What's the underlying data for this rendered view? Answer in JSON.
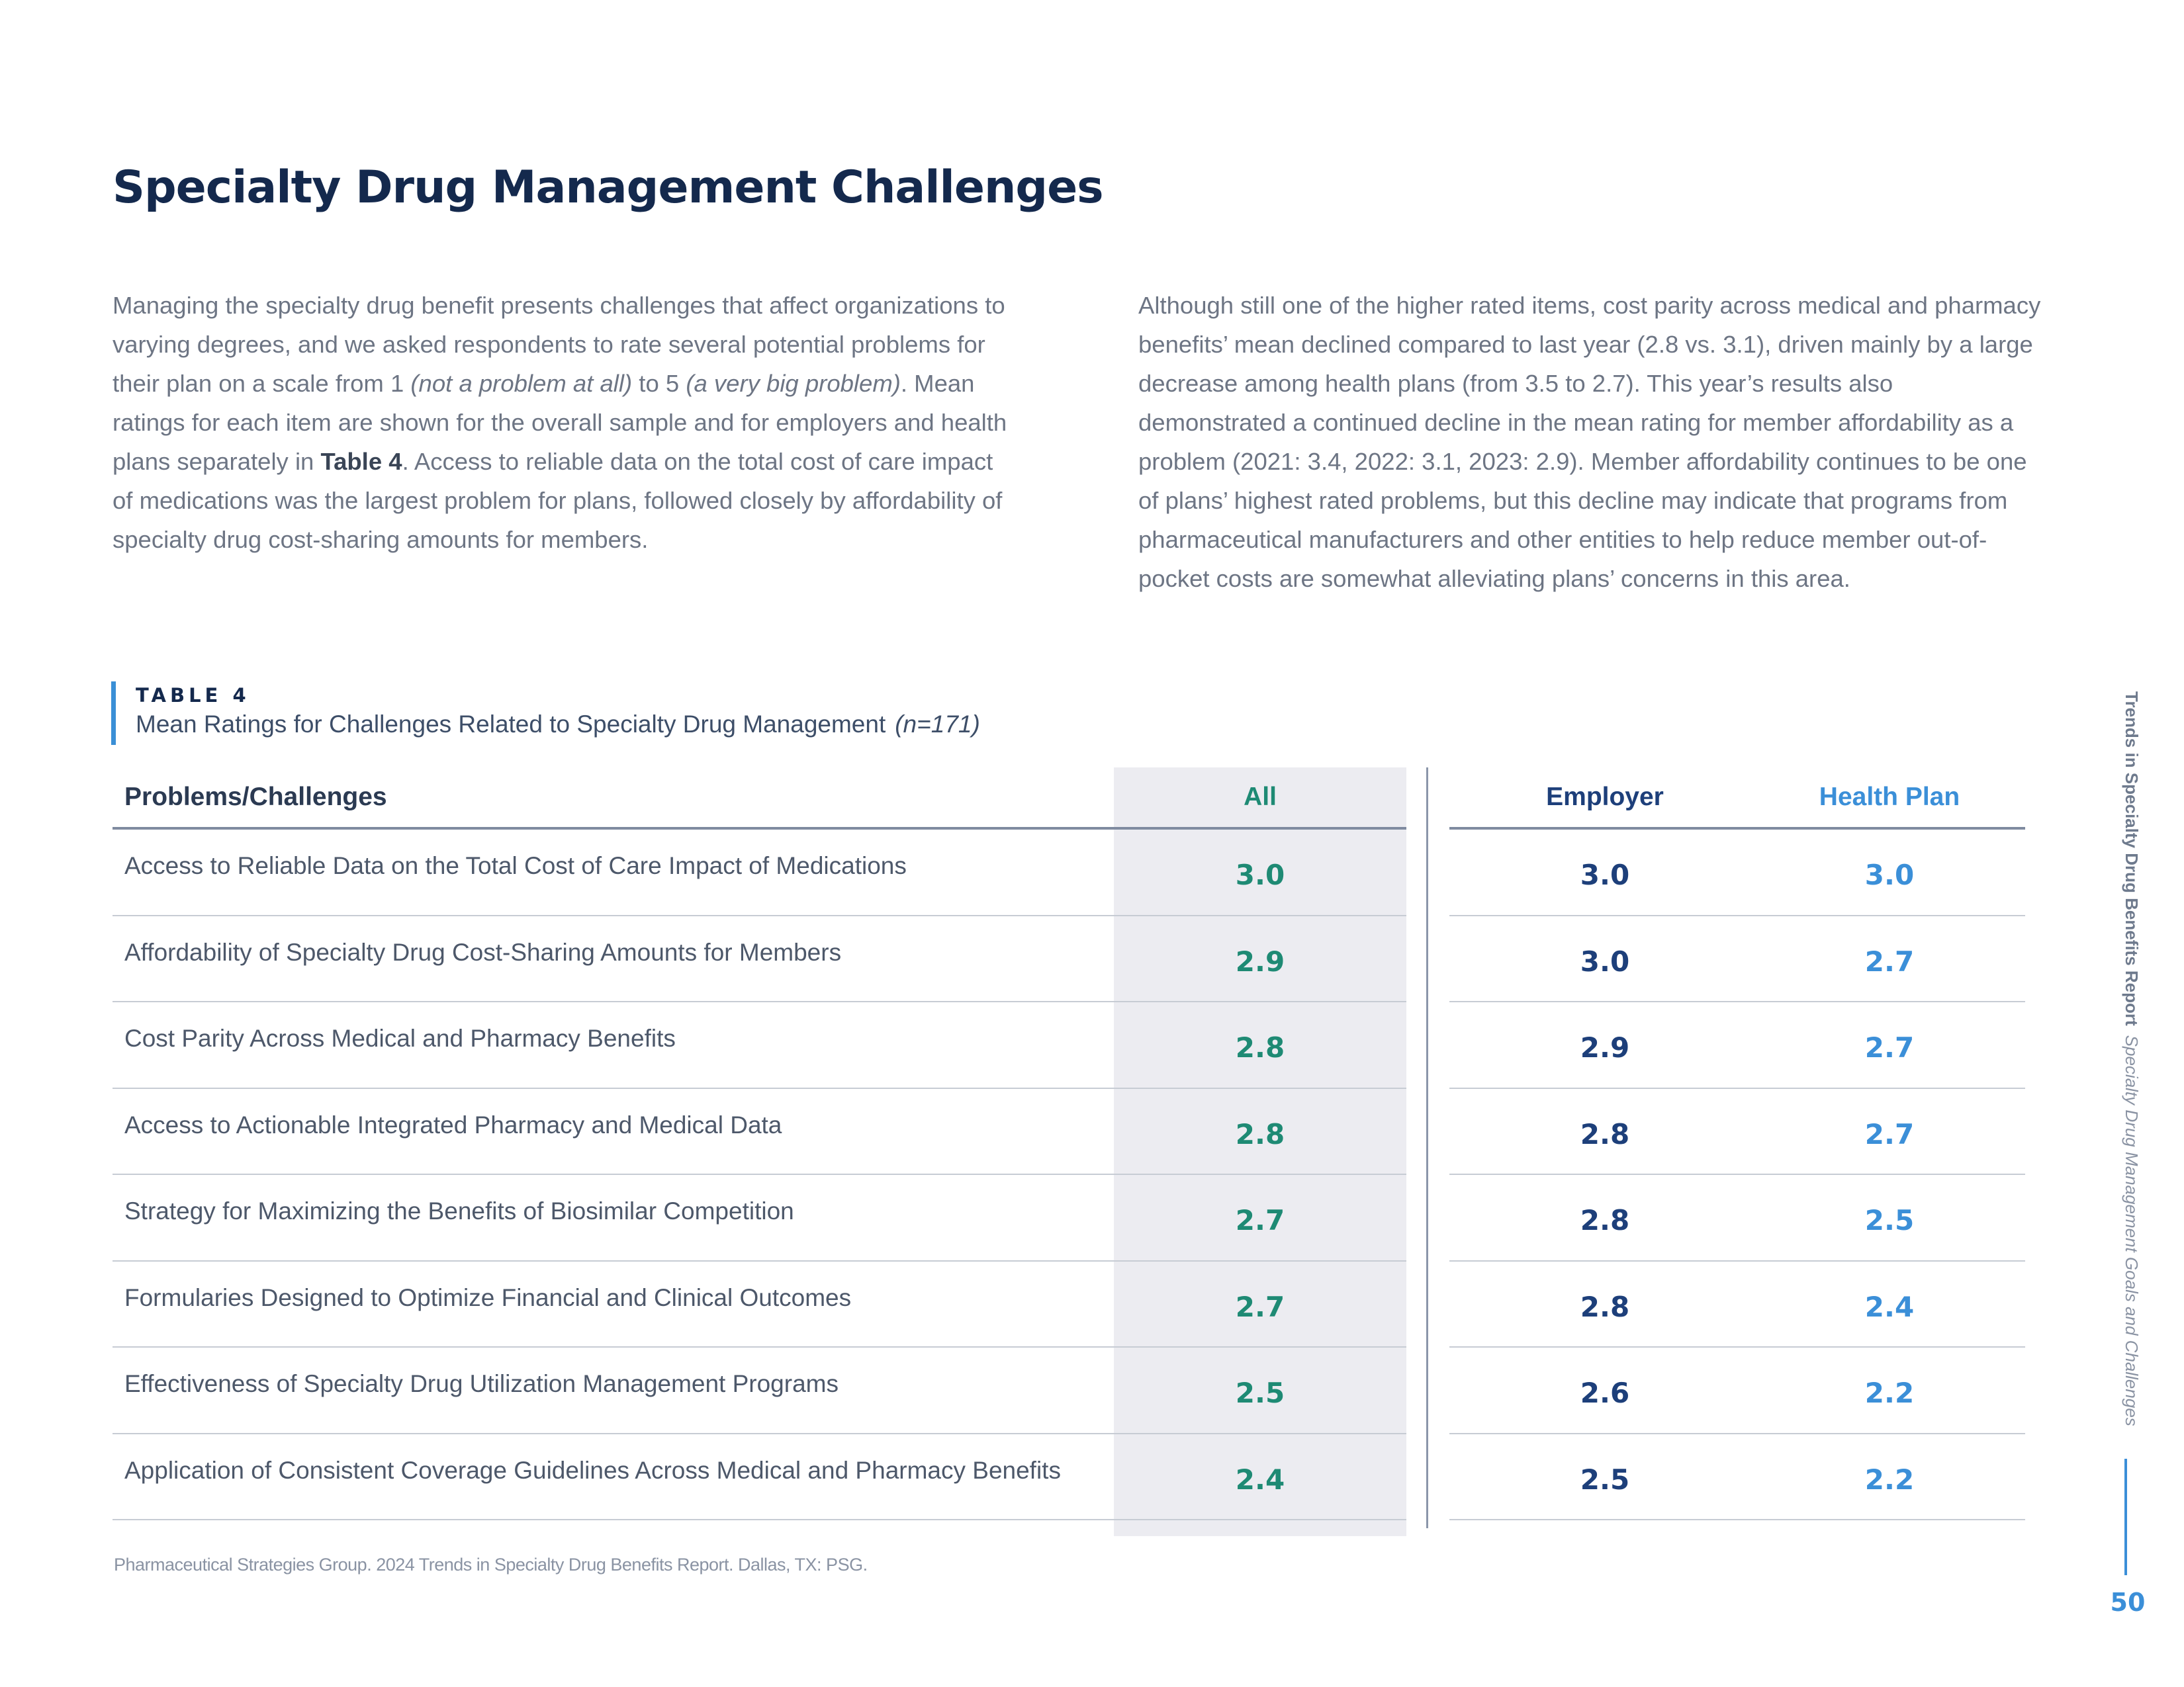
{
  "page": {
    "title": "Specialty Drug Management Challenges",
    "paragraph_left": [
      {
        "t": "Managing the specialty drug benefit presents challenges that affect organizations to varying degrees, and we asked respondents to rate several potential problems for their plan on a scale from 1 "
      },
      {
        "t": "(not a problem at all)",
        "style": "em"
      },
      {
        "t": " to 5 "
      },
      {
        "t": "(a very big problem)",
        "style": "em"
      },
      {
        "t": ". Mean ratings for each item are shown for the overall sample and for employers and health plans separately in "
      },
      {
        "t": "Table 4",
        "style": "strong"
      },
      {
        "t": ". Access to reliable data on the total cost of care impact of medications was the largest problem for plans, followed closely by affordability of specialty drug cost-sharing amounts for members."
      }
    ],
    "paragraph_right": "Although still one of the higher rated items, cost parity across medical and pharmacy benefits’ mean declined compared to last year (2.8 vs. 3.1), driven mainly by a large decrease among health plans (from 3.5 to 2.7). This year’s results also demonstrated a continued decline in the mean rating for member affordability as a problem (2021: 3.4, 2022: 3.1, 2023: 2.9). Member affordability continues to be one of plans’ highest rated problems, but this decline may indicate that programs from pharmaceutical manufacturers and other entities to help reduce member out-of-pocket costs are somewhat alleviating plans’ concerns in this area."
  },
  "table": {
    "label": "TABLE 4",
    "caption": "Mean Ratings for Challenges Related to Specialty Drug Management",
    "n": "(n=171)",
    "columns": {
      "problem": "Problems/Challenges",
      "all": "All",
      "employer": "Employer",
      "health_plan": "Health Plan"
    },
    "rows": [
      {
        "problem": "Access to Reliable Data on the Total Cost of Care Impact of Medications",
        "all": "3.0",
        "employer": "3.0",
        "health_plan": "3.0"
      },
      {
        "problem": "Affordability of Specialty Drug Cost-Sharing Amounts for Members",
        "all": "2.9",
        "employer": "3.0",
        "health_plan": "2.7"
      },
      {
        "problem": "Cost Parity Across Medical and Pharmacy Benefits",
        "all": "2.8",
        "employer": "2.9",
        "health_plan": "2.7"
      },
      {
        "problem": "Access to Actionable Integrated Pharmacy and Medical Data",
        "all": "2.8",
        "employer": "2.8",
        "health_plan": "2.7"
      },
      {
        "problem": "Strategy for Maximizing the Benefits of Biosimilar Competition",
        "all": "2.7",
        "employer": "2.8",
        "health_plan": "2.5"
      },
      {
        "problem": "Formularies Designed to Optimize Financial and Clinical Outcomes",
        "all": "2.7",
        "employer": "2.8",
        "health_plan": "2.4"
      },
      {
        "problem": "Effectiveness of Specialty Drug Utilization Management Programs",
        "all": "2.5",
        "employer": "2.6",
        "health_plan": "2.2"
      },
      {
        "problem": "Application of Consistent Coverage Guidelines Across Medical and Pharmacy Benefits",
        "all": "2.4",
        "employer": "2.5",
        "health_plan": "2.2"
      }
    ],
    "source": "Pharmaceutical Strategies Group. 2024 Trends in Specialty Drug Benefits Report. Dallas, TX: PSG."
  },
  "sidebar": {
    "report_title": "Trends in Specialty Drug Benefits Report",
    "section_title": "Specialty Drug Management Goals and Challenges",
    "page_number": "50"
  },
  "colors": {
    "title": "#14294d",
    "accent_blue": "#3b8fd8",
    "all_teal": "#1e8a74",
    "employer_navy": "#1d3f7a",
    "shade": "#ececf1"
  }
}
